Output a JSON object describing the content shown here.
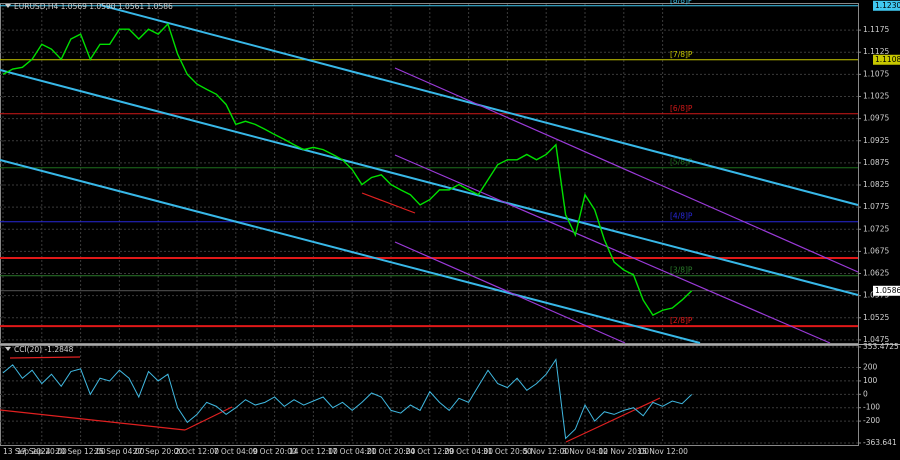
{
  "chart_data": [
    {
      "type": "line",
      "title": "EURUSD,H4  1.0569 1.0590 1.0561 1.0586",
      "color": "#00e000",
      "categories": [
        "13 Sep 2024",
        null,
        null,
        null,
        "17 Sep 20:00",
        null,
        null,
        null,
        "20 Sep 12:00",
        null,
        null,
        null,
        "25 Sep 04:00",
        null,
        null,
        null,
        "27 Sep 20:00",
        null,
        null,
        null,
        "2 Oct 12:00",
        null,
        null,
        null,
        "7 Oct 04:00",
        null,
        null,
        null,
        "9 Oct 20:00",
        null,
        null,
        null,
        "14 Oct 12:00",
        null,
        null,
        null,
        "17 Oct 04:00",
        null,
        null,
        null,
        "21 Oct 20:00",
        null,
        null,
        null,
        "24 Oct 12:00",
        null,
        null,
        null,
        "29 Oct 04:00",
        null,
        null,
        null,
        "31 Oct 20:00",
        null,
        null,
        null,
        "5 Nov 12:00",
        null,
        null,
        null,
        "8 Nov 04:00",
        null,
        null,
        null,
        "12 Nov 20:00",
        null,
        null,
        null,
        "15 Nov 12:00",
        null,
        null,
        null
      ],
      "values": [
        1.1075,
        1.1087,
        1.1091,
        1.1109,
        1.1143,
        1.1132,
        1.1109,
        1.1155,
        1.1166,
        1.1109,
        1.1143,
        1.1143,
        1.1177,
        1.1177,
        1.1155,
        1.1177,
        1.1166,
        1.1189,
        1.1121,
        1.1075,
        1.1053,
        1.1041,
        1.103,
        1.1007,
        1.0962,
        1.0969,
        1.0962,
        1.0951,
        1.0939,
        1.0928,
        1.0916,
        1.0905,
        1.091,
        1.0905,
        1.0894,
        1.0882,
        1.086,
        1.0826,
        1.0842,
        1.0848,
        1.0826,
        1.0814,
        1.0803,
        1.078,
        1.0792,
        1.0814,
        1.0814,
        1.0826,
        1.0814,
        1.0803,
        1.0837,
        1.0871,
        1.0882,
        1.0882,
        1.0894,
        1.0882,
        1.0894,
        1.0916,
        1.0758,
        1.0712,
        1.0803,
        1.0769,
        1.0701,
        1.0651,
        1.0633,
        1.0622,
        1.0565,
        1.0531,
        1.0542,
        1.0547,
        1.0565,
        1.0586
      ],
      "ylim": [
        1.0468,
        1.1234
      ],
      "yticks": [
        1.1175,
        1.1125,
        1.1075,
        1.1025,
        1.0975,
        1.0925,
        1.0875,
        1.0825,
        1.0775,
        1.0725,
        1.0675,
        1.0625,
        1.0575,
        1.0525,
        1.0475
      ],
      "grid": true,
      "last": 1.0586,
      "levels": [
        {
          "value": 1.123,
          "color": "#40c8f0",
          "label": "[8/8]P",
          "axis_label": "1.1230"
        },
        {
          "value": 1.1108,
          "color": "#c8c800",
          "label": "[7/8]P",
          "axis_label": "1.1108"
        },
        {
          "value": 1.0986,
          "color": "#d01818",
          "label": "[6/8]P"
        },
        {
          "value": 1.0864,
          "color": "#1e6e1e",
          "label": "[5/8]P"
        },
        {
          "value": 1.0742,
          "color": "#2828d8",
          "label": "[4/8]P"
        },
        {
          "value": 1.066,
          "color": "#e01818"
        },
        {
          "value": 1.062,
          "color": "#2a7a2a",
          "label": "[3/8]P"
        },
        {
          "value": 1.0506,
          "color": "#e01818",
          "label": "[2/8]P"
        }
      ]
    },
    {
      "type": "line",
      "title": "CCI(20) -1.2848",
      "color": "#40b8e0",
      "values": [
        160,
        220,
        120,
        180,
        80,
        150,
        60,
        170,
        190,
        0,
        120,
        100,
        180,
        120,
        -20,
        170,
        100,
        150,
        -100,
        -210,
        -150,
        -60,
        -90,
        -150,
        -100,
        -40,
        -80,
        -60,
        -20,
        -90,
        -40,
        -80,
        -50,
        -20,
        -100,
        -60,
        -120,
        -60,
        10,
        -20,
        -120,
        -140,
        -80,
        -120,
        20,
        -60,
        -120,
        -30,
        -60,
        60,
        180,
        80,
        50,
        120,
        30,
        80,
        150,
        260,
        -330,
        -260,
        -80,
        -200,
        -130,
        -150,
        -120,
        -100,
        -160,
        -60,
        -90,
        -50,
        -70,
        -1.2848
      ],
      "ylim": [
        -363.641,
        353.4725
      ],
      "yticks": [
        353.4725,
        200,
        100,
        0,
        -100,
        -200,
        -363.641
      ],
      "grid": true
    }
  ]
}
